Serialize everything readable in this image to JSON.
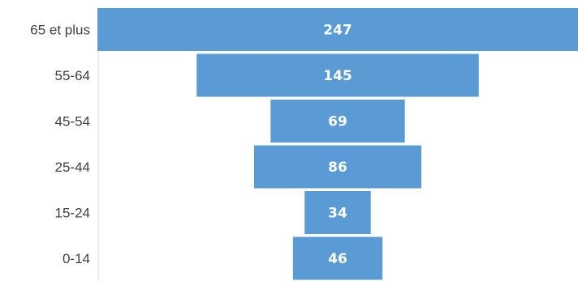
{
  "chart_data": {
    "type": "bar",
    "orientation": "horizontal-funnel",
    "categories": [
      "65 et plus",
      "55-64",
      "45-54",
      "25-44",
      "15-24",
      "0-14"
    ],
    "values": [
      247,
      145,
      69,
      86,
      34,
      46
    ],
    "data_labels": [
      "247",
      "145",
      "69",
      "86",
      "34",
      "46"
    ],
    "title": "",
    "xlabel": "",
    "ylabel": "",
    "grid": false,
    "legend": "none",
    "bar_color": "#5B9BD5",
    "label_color": "#FFFFFF",
    "category_label_color": "#404040"
  }
}
